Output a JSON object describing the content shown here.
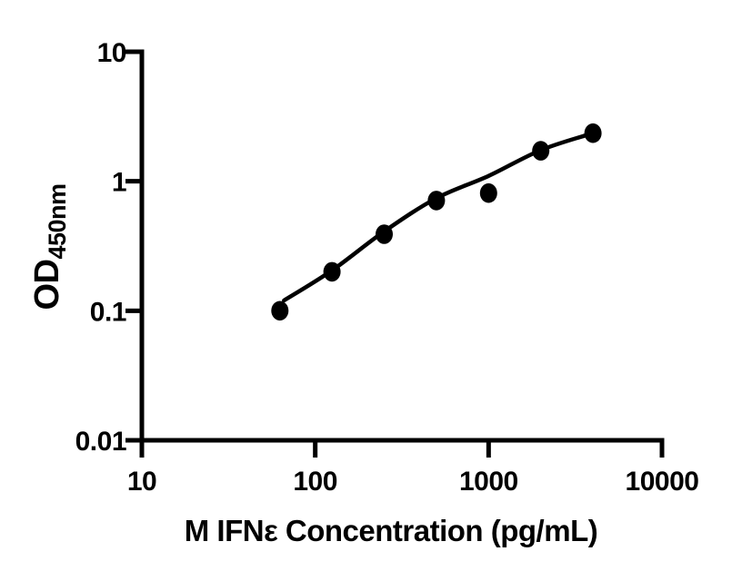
{
  "figure": {
    "background": "#ffffff"
  },
  "chart_data": {
    "type": "scatter",
    "title": "",
    "xlabel": "M IFNε Concentration (pg/mL)",
    "ylabel": "OD450nm",
    "ylabel_main": "OD",
    "ylabel_subscript": "450nm",
    "x_scale": "log",
    "y_scale": "log",
    "xlim": [
      10,
      10000
    ],
    "ylim": [
      0.01,
      10
    ],
    "x_ticks": [
      10,
      100,
      1000,
      10000
    ],
    "x_tick_labels": [
      "10",
      "100",
      "1000",
      "10000"
    ],
    "y_ticks": [
      10,
      1,
      0.1,
      0.01
    ],
    "y_tick_labels": [
      "10",
      "1",
      "0.1",
      "0.01"
    ],
    "grid": false,
    "legend": null,
    "colors": {
      "marker": "#000000",
      "line": "#000000",
      "axis": "#000000",
      "text": "#000000"
    },
    "series": [
      {
        "name": "standard-curve-points",
        "marker": "filled-circle",
        "points": [
          {
            "x": 62.5,
            "y": 0.1
          },
          {
            "x": 125,
            "y": 0.2
          },
          {
            "x": 250,
            "y": 0.39
          },
          {
            "x": 500,
            "y": 0.71
          },
          {
            "x": 1000,
            "y": 0.81
          },
          {
            "x": 2000,
            "y": 1.72
          },
          {
            "x": 4000,
            "y": 2.35
          }
        ]
      }
    ],
    "fit_curve": {
      "name": "fitted-standard-curve",
      "points": [
        {
          "x": 66,
          "y": 0.12
        },
        {
          "x": 125,
          "y": 0.205
        },
        {
          "x": 250,
          "y": 0.41
        },
        {
          "x": 500,
          "y": 0.74
        },
        {
          "x": 1000,
          "y": 1.1
        },
        {
          "x": 2000,
          "y": 1.74
        },
        {
          "x": 4000,
          "y": 2.35
        }
      ]
    }
  }
}
